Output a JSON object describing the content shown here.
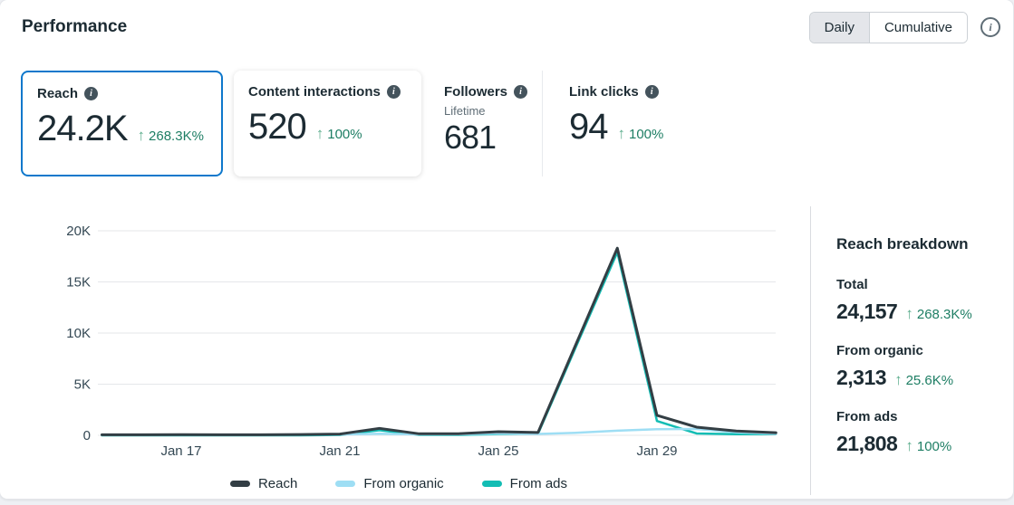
{
  "header": {
    "title": "Performance",
    "view_toggle": {
      "options": [
        "Daily",
        "Cumulative"
      ],
      "selected": "Daily"
    }
  },
  "icons": {
    "arrow_up": "↑",
    "info": "i"
  },
  "colors": {
    "accent_blue": "#0e78cc",
    "positive_green_text": "#1e7e64",
    "positive_green_arrow": "#5cad8d",
    "series_reach": "#333e44",
    "series_organic": "#9edef4",
    "series_ads": "#13bdb4"
  },
  "metrics": [
    {
      "label": "Reach",
      "value": "24.2K",
      "trend_direction": "up",
      "trend": "268.3K%",
      "selected": true
    },
    {
      "label": "Content interactions",
      "value": "520",
      "trend_direction": "up",
      "trend": "100%",
      "selected": false
    },
    {
      "label": "Followers",
      "sublabel": "Lifetime",
      "value": "681",
      "selected": false
    },
    {
      "label": "Link clicks",
      "value": "94",
      "trend_direction": "up",
      "trend": "100%",
      "selected": false
    }
  ],
  "chart_data": {
    "type": "line",
    "title": "",
    "xlabel": "",
    "ylabel": "",
    "grid": "horizontal",
    "legend_position": "bottom",
    "ylim": [
      0,
      20000
    ],
    "y_ticks": [
      "20K",
      "15K",
      "10K",
      "5K",
      "0"
    ],
    "x_ticks": [
      "Jan 17",
      "Jan 21",
      "Jan 25",
      "Jan 29"
    ],
    "x": [
      "Jan 15",
      "Jan 16",
      "Jan 17",
      "Jan 18",
      "Jan 19",
      "Jan 20",
      "Jan 21",
      "Jan 22",
      "Jan 23",
      "Jan 24",
      "Jan 25",
      "Jan 26",
      "Jan 27",
      "Jan 28",
      "Jan 29",
      "Jan 30",
      "Jan 31",
      "Feb 1"
    ],
    "series": [
      {
        "name": "Reach",
        "color": "#333e44",
        "values": [
          60,
          60,
          70,
          60,
          60,
          80,
          120,
          680,
          150,
          160,
          350,
          280,
          9300,
          18300,
          1950,
          800,
          420,
          250
        ]
      },
      {
        "name": "From organic",
        "color": "#9edef4",
        "values": [
          45,
          45,
          55,
          45,
          45,
          60,
          80,
          160,
          90,
          100,
          180,
          130,
          250,
          450,
          600,
          620,
          300,
          140
        ]
      },
      {
        "name": "From ads",
        "color": "#13bdb4",
        "values": [
          0,
          0,
          0,
          0,
          0,
          0,
          30,
          500,
          40,
          40,
          120,
          150,
          9050,
          17900,
          1400,
          180,
          110,
          120
        ]
      }
    ]
  },
  "breakdown": {
    "title": "Reach breakdown",
    "items": [
      {
        "label": "Total",
        "value": "24,157",
        "trend_direction": "up",
        "trend": "268.3K%"
      },
      {
        "label": "From organic",
        "value": "2,313",
        "trend_direction": "up",
        "trend": "25.6K%"
      },
      {
        "label": "From ads",
        "value": "21,808",
        "trend_direction": "up",
        "trend": "100%"
      }
    ]
  }
}
